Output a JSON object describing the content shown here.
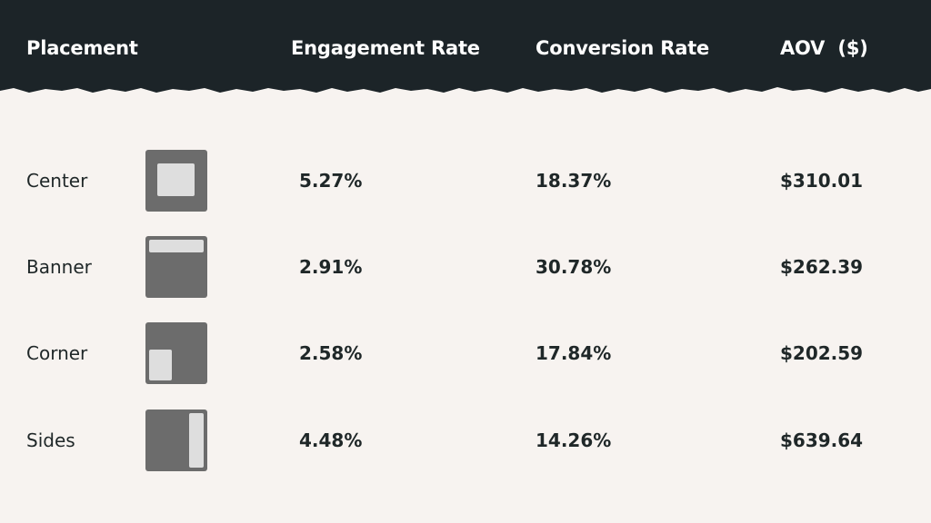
{
  "chart_data": {
    "type": "table",
    "columns": [
      "Placement",
      "Engagement Rate",
      "Conversion Rate",
      "AOV  ($)"
    ],
    "rows": [
      {
        "placement": "Center",
        "icon": "center-layout-icon",
        "engagement_rate": "5.27%",
        "conversion_rate": "18.37%",
        "aov": "$310.01"
      },
      {
        "placement": "Banner",
        "icon": "banner-layout-icon",
        "engagement_rate": "2.91%",
        "conversion_rate": "30.78%",
        "aov": "$262.39"
      },
      {
        "placement": "Corner",
        "icon": "corner-layout-icon",
        "engagement_rate": "2.58%",
        "conversion_rate": "17.84%",
        "aov": "$202.59"
      },
      {
        "placement": "Sides",
        "icon": "sides-layout-icon",
        "engagement_rate": "4.48%",
        "conversion_rate": "14.26%",
        "aov": "$639.64"
      }
    ]
  },
  "colors": {
    "header_background": "#1c2428",
    "page_background": "#f7f3f0",
    "thumbnail_frame": "#6c6c6c",
    "thumbnail_highlight": "#dedede",
    "text": "#1f2728"
  }
}
